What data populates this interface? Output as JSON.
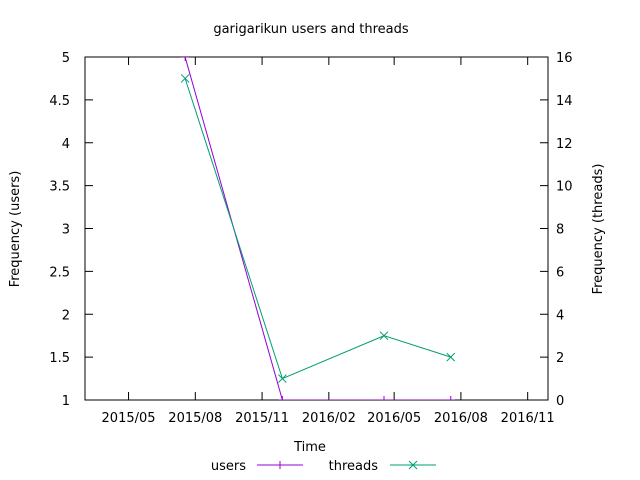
{
  "chart_data": {
    "type": "line",
    "title": "garigarikun users and threads",
    "xlabel": "Time",
    "ylabel_left": "Frequency (users)",
    "ylabel_right": "Frequency (threads)",
    "x_tick_labels": [
      "2015/05",
      "2015/08",
      "2015/11",
      "2016/02",
      "2016/05",
      "2016/08",
      "2016/11"
    ],
    "y_left_ticks": [
      "1",
      "1.5",
      "2",
      "2.5",
      "3",
      "3.5",
      "4",
      "4.5",
      "5"
    ],
    "y_right_ticks": [
      "0",
      "2",
      "4",
      "6",
      "8",
      "10",
      "12",
      "14",
      "16"
    ],
    "ylim_left": [
      1,
      5
    ],
    "ylim_right": [
      0,
      16
    ],
    "xlim": [
      "2015-03-16",
      "2016-12-13"
    ],
    "legend_position": "bottom-center",
    "grid": false,
    "series": [
      {
        "name": "users",
        "axis": "left",
        "color": "#9400d3",
        "marker": "plus",
        "x": [
          "2015-08-01",
          "2015-12-13",
          "2016-05-01",
          "2016-08-01"
        ],
        "y": [
          5,
          1,
          1,
          1
        ]
      },
      {
        "name": "threads",
        "axis": "right",
        "color": "#009e73",
        "marker": "cross",
        "x": [
          "2015-08-01",
          "2015-12-13",
          "2016-05-01",
          "2016-08-01"
        ],
        "y": [
          15,
          1,
          3,
          2
        ]
      }
    ]
  }
}
